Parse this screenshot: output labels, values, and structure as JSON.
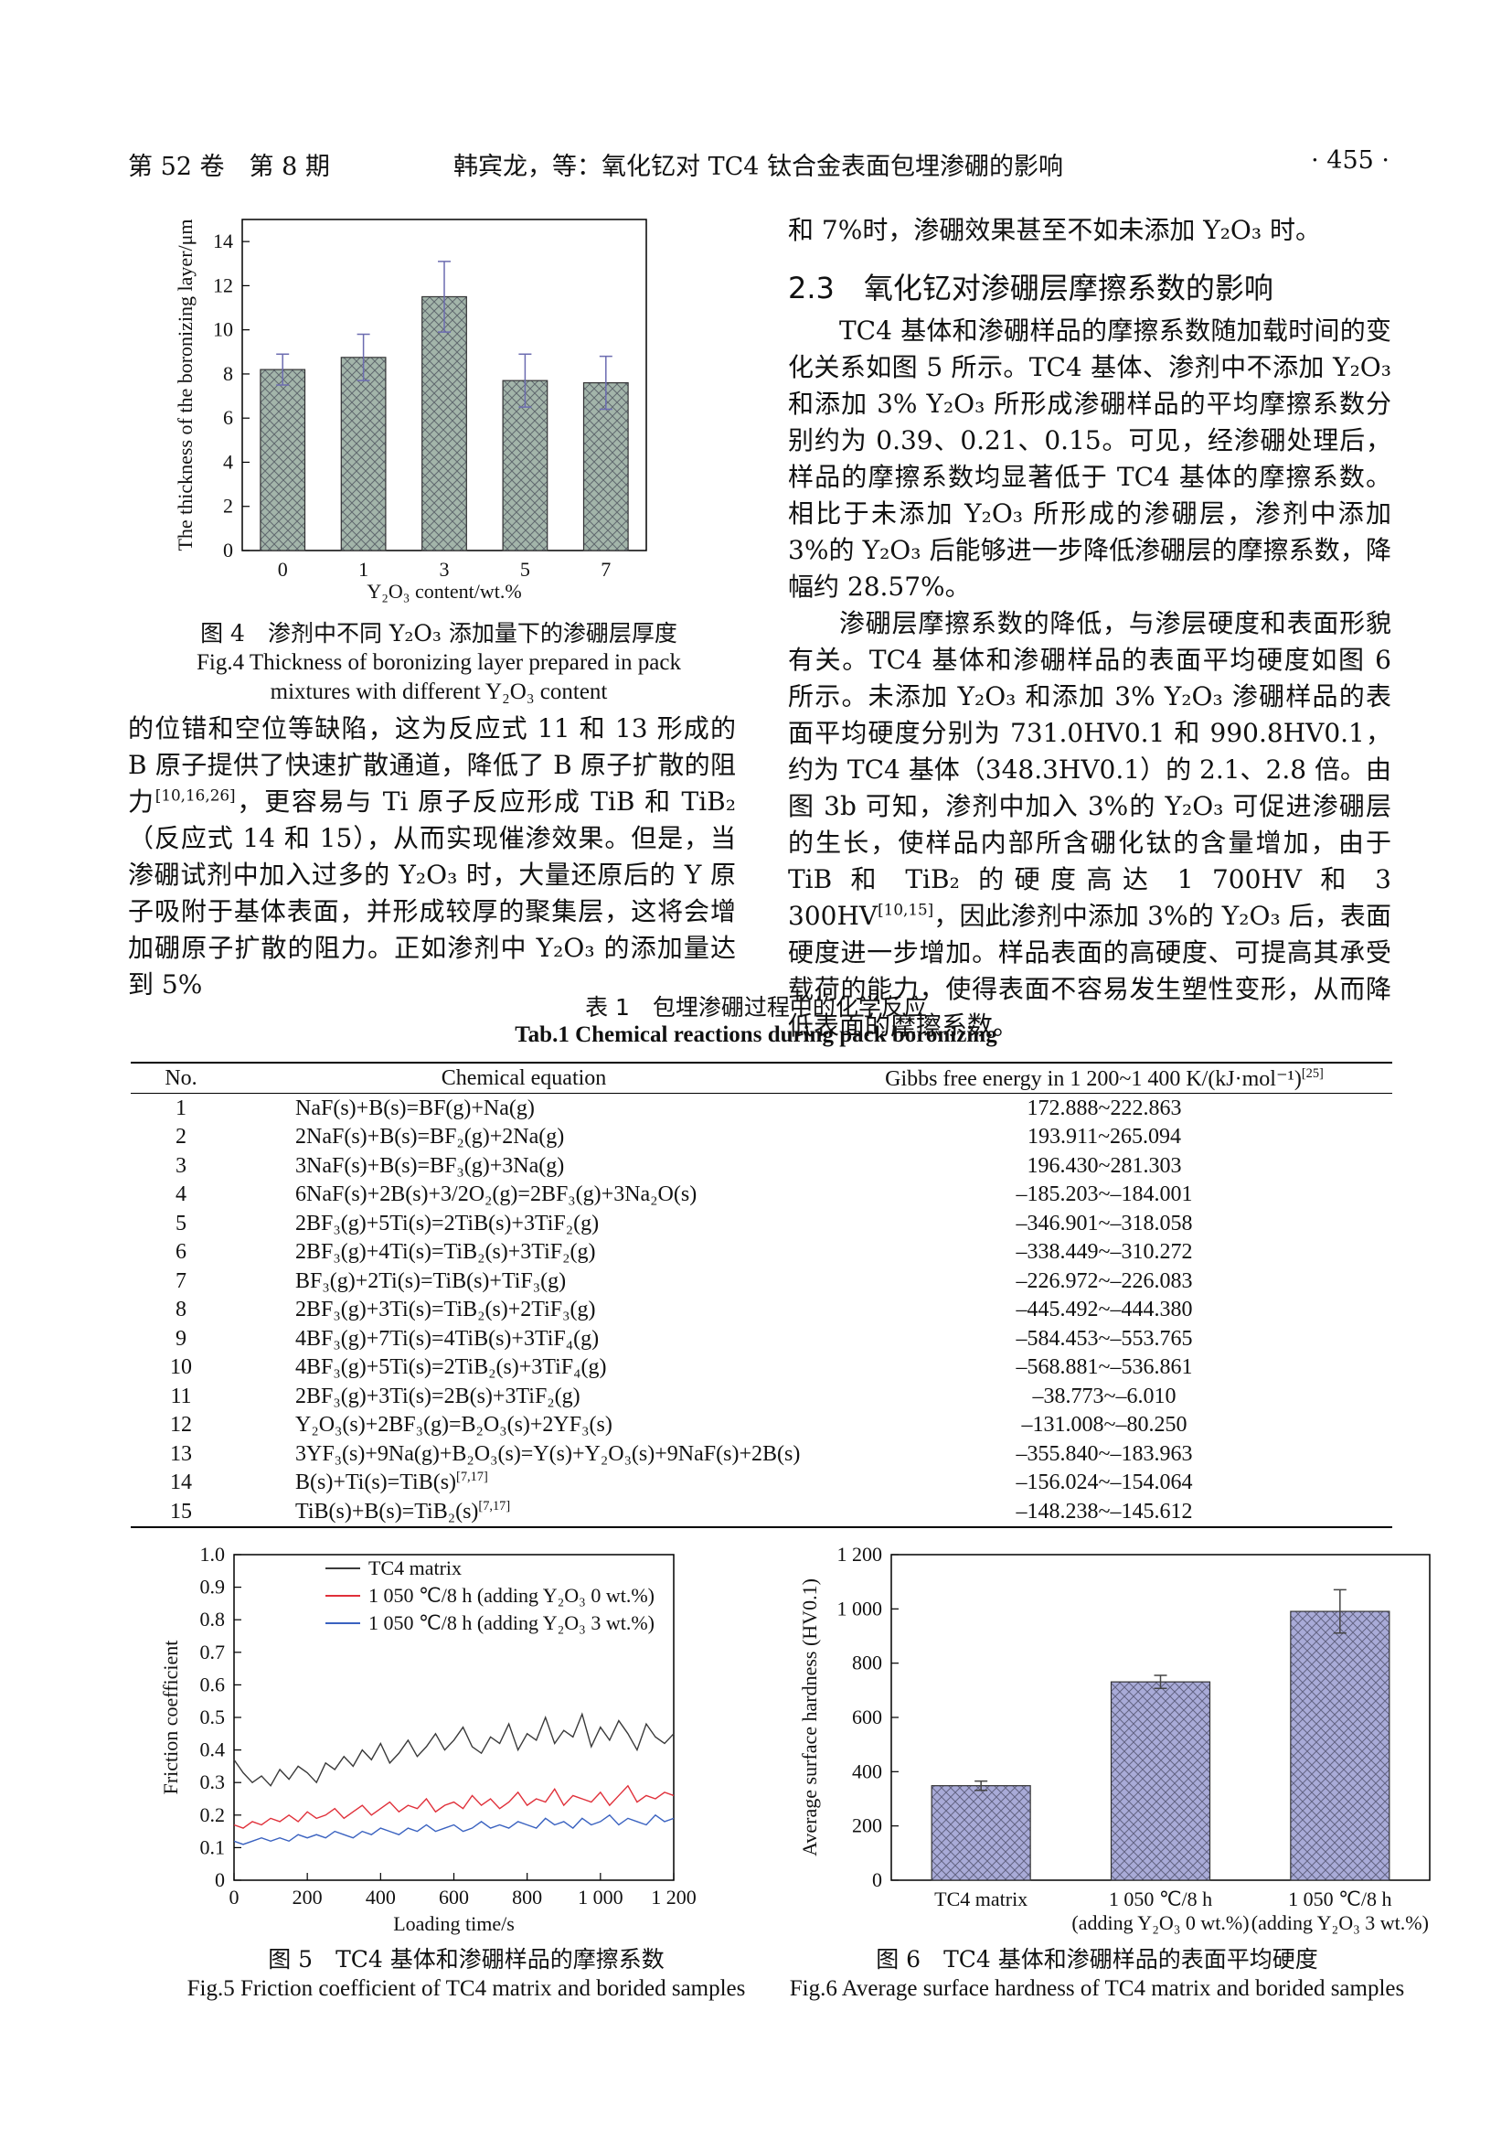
{
  "header": {
    "volume": "第 52 卷　第 8 期",
    "running_title": "韩宾龙，等：氧化钇对 TC4 钛合金表面包埋渗硼的影响",
    "page": "· 455 ·"
  },
  "chart_data": [
    {
      "type": "bar",
      "x_label": "Y₂O₃ content/wt.%",
      "y_label": "The thickness of the boronizing layer/μm",
      "categories": [
        "0",
        "1",
        "3",
        "5",
        "7"
      ],
      "values": [
        8.2,
        8.75,
        11.5,
        7.7,
        7.6
      ],
      "errors": [
        0.7,
        1.05,
        1.6,
        1.2,
        1.2
      ],
      "color": "#a3b5aa",
      "error_color": "#6c6cb0",
      "ylim": [
        0,
        15
      ],
      "yticks": [
        0,
        2,
        4,
        6,
        8,
        10,
        12,
        14
      ]
    },
    {
      "type": "line",
      "x_label": "Loading time/s",
      "y_label": "Friction coefficient",
      "legend": "top-left",
      "x": [
        0,
        25,
        50,
        75,
        100,
        125,
        150,
        175,
        200,
        225,
        250,
        275,
        300,
        325,
        350,
        375,
        400,
        425,
        450,
        475,
        500,
        525,
        550,
        575,
        600,
        625,
        650,
        675,
        700,
        725,
        750,
        775,
        800,
        825,
        850,
        875,
        900,
        925,
        950,
        975,
        1000,
        1025,
        1050,
        1075,
        1100,
        1125,
        1150,
        1175,
        1200
      ],
      "series": [
        {
          "name": "TC4 matrix",
          "color": "#3a3a3a",
          "values": [
            0.37,
            0.33,
            0.3,
            0.32,
            0.29,
            0.34,
            0.31,
            0.35,
            0.33,
            0.3,
            0.36,
            0.34,
            0.38,
            0.35,
            0.4,
            0.37,
            0.42,
            0.36,
            0.39,
            0.43,
            0.38,
            0.41,
            0.45,
            0.4,
            0.43,
            0.47,
            0.41,
            0.39,
            0.44,
            0.42,
            0.48,
            0.4,
            0.45,
            0.43,
            0.5,
            0.42,
            0.46,
            0.44,
            0.51,
            0.41,
            0.47,
            0.43,
            0.49,
            0.45,
            0.4,
            0.48,
            0.44,
            0.42,
            0.45
          ]
        },
        {
          "name": "1 050 ℃/8 h (adding Y₂O₃ 0 wt.%)",
          "color": "#e0303a",
          "values": [
            0.17,
            0.16,
            0.18,
            0.17,
            0.19,
            0.18,
            0.2,
            0.18,
            0.21,
            0.19,
            0.2,
            0.22,
            0.19,
            0.21,
            0.23,
            0.2,
            0.22,
            0.24,
            0.21,
            0.23,
            0.22,
            0.25,
            0.21,
            0.23,
            0.24,
            0.22,
            0.26,
            0.23,
            0.25,
            0.22,
            0.24,
            0.27,
            0.23,
            0.25,
            0.24,
            0.28,
            0.23,
            0.26,
            0.25,
            0.24,
            0.27,
            0.23,
            0.26,
            0.29,
            0.24,
            0.26,
            0.25,
            0.27,
            0.26
          ]
        },
        {
          "name": "1 050 ℃/8 h (adding Y₂O₃ 3 wt.%)",
          "color": "#3a62c0",
          "values": [
            0.12,
            0.11,
            0.12,
            0.13,
            0.12,
            0.13,
            0.12,
            0.14,
            0.13,
            0.14,
            0.13,
            0.15,
            0.14,
            0.13,
            0.15,
            0.14,
            0.16,
            0.15,
            0.14,
            0.16,
            0.15,
            0.17,
            0.15,
            0.16,
            0.17,
            0.15,
            0.16,
            0.18,
            0.16,
            0.17,
            0.16,
            0.18,
            0.17,
            0.16,
            0.19,
            0.17,
            0.18,
            0.16,
            0.19,
            0.17,
            0.18,
            0.2,
            0.17,
            0.19,
            0.18,
            0.17,
            0.2,
            0.18,
            0.19
          ]
        }
      ],
      "xlim": [
        0,
        1200
      ],
      "xticks": [
        0,
        200,
        400,
        600,
        800,
        {
          "value": 1000,
          "label": "1 000"
        },
        {
          "value": 1200,
          "label": "1 200"
        }
      ],
      "ylim": [
        0,
        1
      ],
      "yticks": [
        0,
        0.1,
        0.2,
        0.3,
        0.4,
        0.5,
        0.6,
        0.7,
        0.8,
        0.9,
        {
          "value": 1,
          "label": "1.0"
        }
      ]
    },
    {
      "type": "bar",
      "y_label": "Average surface hardness (HV0.1)",
      "categories": [
        [
          "TC4 matrix"
        ],
        [
          "1 050 ℃/8 h",
          "(adding Y₂O₃ 0 wt.%)"
        ],
        [
          "1 050 ℃/8 h",
          "(adding Y₂O₃ 3 wt.%)"
        ]
      ],
      "values": [
        348.3,
        731.0,
        990.8
      ],
      "errors": [
        17,
        24,
        80
      ],
      "color": "#a9abd8",
      "error_color": "#444444",
      "ylim": [
        0,
        1200
      ],
      "yticks": [
        0,
        200,
        400,
        600,
        800,
        {
          "value": 1000,
          "label": "1 000"
        },
        {
          "value": 1200,
          "label": "1 200"
        }
      ]
    }
  ],
  "figure_captions": [
    {
      "zh": "图 4　渗剂中不同 Y₂O₃ 添加量下的渗硼层厚度",
      "en": "Fig.4 Thickness of boronizing layer prepared in pack mixtures with different Y₂O₃ content"
    },
    {
      "zh": "图 5　TC4 基体和渗硼样品的摩擦系数",
      "en": "Fig.5 Friction coefficient of TC4 matrix and borided samples"
    },
    {
      "zh": "图 6　TC4 基体和渗硼样品的表面平均硬度",
      "en": "Fig.6 Average surface hardness of TC4 matrix and borided samples"
    }
  ],
  "text": {
    "left": [
      [
        "的位错和空位等缺陷，这为反应式 11 和 13 形成的 B 原子提供了快速扩散通道，降低了 B 原子扩散的阻力",
        {
          "sup": "[10,16,26]"
        },
        "，更容易与 Ti 原子反应形成 TiB 和 TiB₂（反应式 14 和 15），从而实现催渗效果。但是，当渗硼试剂中加入过多的 Y₂O₃ 时，大量还原后的 Y 原子吸附于基体表面，并形成较厚的聚集层，这将会增加硼原子扩散的阻力。正如渗剂中 Y₂O₃ 的添加量达到 5%"
      ]
    ],
    "heading": "2.3　氧化钇对渗硼层摩擦系数的影响",
    "right": [
      [
        "和 7%时，渗硼效果甚至不如未添加 Y₂O₃ 时。"
      ],
      [
        "TC4 基体和渗硼样品的摩擦系数随加载时间的变化关系如图 5 所示。TC4 基体、渗剂中不添加 Y₂O₃ 和添加 3% Y₂O₃ 所形成渗硼样品的平均摩擦系数分别约为 0.39、0.21、0.15。可见，经渗硼处理后，样品的摩擦系数均显著低于 TC4 基体的摩擦系数。相比于未添加 Y₂O₃ 所形成的渗硼层，渗剂中添加 3%的 Y₂O₃ 后能够进一步降低渗硼层的摩擦系数，降幅约 28.57%。"
      ],
      [
        "渗硼层摩擦系数的降低，与渗层硬度和表面形貌有关。TC4 基体和渗硼样品的表面平均硬度如图 6 所示。未添加 Y₂O₃ 和添加 3% Y₂O₃ 渗硼样品的表面平均硬度分别为 731.0HV0.1 和 990.8HV0.1，约为 TC4 基体（348.3HV0.1）的 2.1、2.8 倍。由图 3b 可知，渗剂中加入 3%的 Y₂O₃ 可促进渗硼层的生长，使样品内部所含硼化钛的含量增加，由于 TiB 和 TiB₂ 的硬度高达 1 700HV 和 3 300HV",
        {
          "sup": "[10,15]"
        },
        "，因此渗剂中添加 3%的 Y₂O₃ 后，表面硬度进一步增加。样品表面的高硬度、可提高其承受载荷的能力，使得表面不容易发生塑性变形，从而降低表面的摩擦系数。"
      ]
    ]
  },
  "table": {
    "title_zh": "表 1　包埋渗硼过程中的化学反应",
    "title_en": "Tab.1 Chemical reactions during pack boronizing",
    "header": [
      "No.",
      "Chemical equation",
      "Gibbs free energy in 1 200~1 400 K/(kJ·mol⁻¹)"
    ],
    "header_ref": "[25]",
    "rows": [
      {
        "no": "1",
        "equation": "NaF(s)+B(s)=BF(g)+Na(g)",
        "energy": "172.888~222.863"
      },
      {
        "no": "2",
        "equation": "2NaF(s)+B(s)=BF₂(g)+2Na(g)",
        "energy": "193.911~265.094"
      },
      {
        "no": "3",
        "equation": "3NaF(s)+B(s)=BF₃(g)+3Na(g)",
        "energy": "196.430~281.303"
      },
      {
        "no": "4",
        "equation": "6NaF(s)+2B(s)+3/2O₂(g)=2BF₃(g)+3Na₂O(s)",
        "energy": "–185.203~–184.001"
      },
      {
        "no": "5",
        "equation": "2BF₃(g)+5Ti(s)=2TiB(s)+3TiF₂(g)",
        "energy": "–346.901~–318.058"
      },
      {
        "no": "6",
        "equation": "2BF₃(g)+4Ti(s)=TiB₂(s)+3TiF₂(g)",
        "energy": "–338.449~–310.272"
      },
      {
        "no": "7",
        "equation": "BF₃(g)+2Ti(s)=TiB(s)+TiF₃(g)",
        "energy": "–226.972~–226.083"
      },
      {
        "no": "8",
        "equation": "2BF₃(g)+3Ti(s)=TiB₂(s)+2TiF₃(g)",
        "energy": "–445.492~–444.380"
      },
      {
        "no": "9",
        "equation": "4BF₃(g)+7Ti(s)=4TiB(s)+3TiF₄(g)",
        "energy": "–584.453~–553.765"
      },
      {
        "no": "10",
        "equation": "4BF₃(g)+5Ti(s)=2TiB₂(s)+3TiF₄(g)",
        "energy": "–568.881~–536.861"
      },
      {
        "no": "11",
        "equation": "2BF₃(g)+3Ti(s)=2B(s)+3TiF₂(g)",
        "energy": "–38.773~–6.010"
      },
      {
        "no": "12",
        "equation": "Y₂O₃(s)+2BF₃(g)=B₂O₃(s)+2YF₃(s)",
        "energy": "–131.008~–80.250"
      },
      {
        "no": "13",
        "equation": "3YF₃(s)+9Na(g)+B₂O₃(s)=Y(s)+Y₂O₃(s)+9NaF(s)+2B(s)",
        "energy": "–355.840~–183.963"
      },
      {
        "no": "14",
        "equation": "B(s)+Ti(s)=TiB(s)",
        "ref": "[7,17]",
        "energy": "–156.024~–154.064"
      },
      {
        "no": "15",
        "equation": "TiB(s)+B(s)=TiB₂(s)",
        "ref": "[7,17]",
        "energy": "–148.238~–145.612"
      }
    ]
  }
}
